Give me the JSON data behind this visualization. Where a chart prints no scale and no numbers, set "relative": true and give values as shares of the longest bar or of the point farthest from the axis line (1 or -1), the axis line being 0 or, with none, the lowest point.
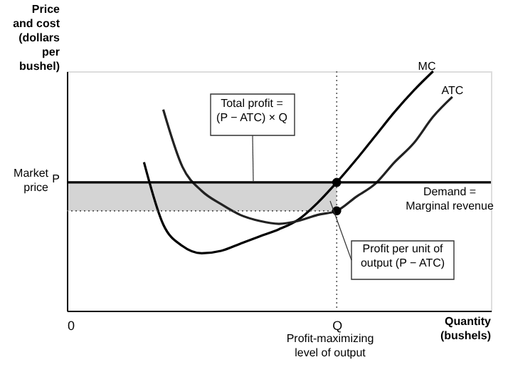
{
  "chart_data": {
    "type": "line",
    "relative": true,
    "ylabel": "Price\nand cost\n(dollars\nper\nbushel)",
    "xlabel": "Quantity\n(bushels)",
    "categories": [
      "0",
      null,
      null,
      null,
      null,
      null,
      null,
      null,
      null,
      null,
      null,
      null,
      null,
      null,
      "Q",
      null,
      null,
      null,
      null,
      null,
      null,
      null,
      null
    ],
    "grid": false,
    "marker": "none",
    "line_style": "solid",
    "series": [
      {
        "name": "MC",
        "color": "#000000",
        "values": [
          null,
          null,
          null,
          null,
          0.62,
          0.36,
          0.27,
          0.24,
          0.25,
          0.28,
          0.31,
          0.34,
          0.38,
          0.45,
          0.536,
          0.63,
          0.73,
          0.83,
          0.92,
          1,
          null,
          null,
          null
        ]
      },
      {
        "name": "ATC",
        "color": "#222222",
        "values": [
          null,
          null,
          null,
          null,
          null,
          0.84,
          0.6,
          0.5,
          0.445,
          0.4,
          0.375,
          0.363,
          0.375,
          0.4,
          0.417,
          0.475,
          0.53,
          0.62,
          0.7,
          0.81,
          0.893,
          null,
          null
        ]
      },
      {
        "name": "Demand =\nMarginal revenue",
        "color": "#000000",
        "values": [
          0.536,
          0.536,
          0.536,
          0.536,
          0.536,
          0.536,
          0.536,
          0.536,
          0.536,
          0.536,
          0.536,
          0.536,
          0.536,
          0.536,
          0.536,
          0.536,
          0.536,
          0.536,
          0.536,
          0.536,
          0.536,
          0.536,
          0.536
        ]
      },
      {
        "type": "line",
        "line_style": "dotted",
        "color": "#555555",
        "values": [
          0.417,
          0.417,
          0.417,
          0.417,
          0.417,
          0.417,
          0.417,
          0.417,
          0.417,
          0.417,
          0.417,
          0.417,
          0.417,
          0.417,
          0.417,
          null,
          null,
          null,
          null,
          null,
          null,
          null,
          null
        ],
        "lower": [
          0.417,
          0.417,
          0.417,
          0.417,
          0.417,
          0.417,
          0.417,
          0.417,
          0.417,
          0.417,
          0.417,
          0.417,
          0.417,
          0.417,
          0.417,
          null,
          null,
          null,
          null,
          null,
          null,
          null,
          null
        ],
        "upper": [
          0.536,
          0.536,
          0.536,
          0.536,
          0.536,
          0.536,
          0.536,
          0.536,
          0.536,
          0.536,
          0.536,
          0.536,
          0.536,
          0.536,
          0.536,
          null,
          null,
          null,
          null,
          null,
          null,
          null,
          null
        ]
      },
      {
        "type": "scatter",
        "marker": "circle",
        "color": "#000000",
        "x": [
          "Q",
          "Q"
        ],
        "values": [
          0.536,
          0.417
        ]
      }
    ],
    "ref_lines": [
      {
        "axis": "x",
        "value": "Q",
        "line_style": "dotted",
        "color": "#555555"
      }
    ],
    "annotations": [
      "Market\nprice",
      "P",
      "Total profit =\n(P − ATC) × Q",
      "Profit per unit of\noutput (P − ATC)",
      "Profit-maximizing\nlevel of output"
    ]
  }
}
